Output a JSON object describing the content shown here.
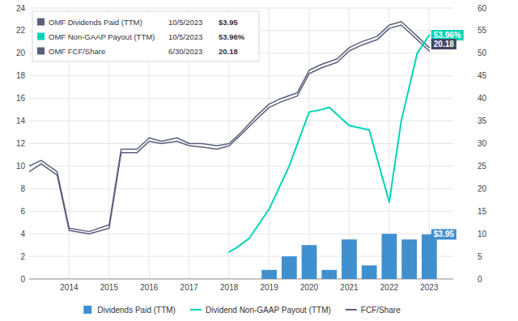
{
  "chart_data": {
    "type": "bar",
    "series": [
      {
        "name": "Dividends Paid (TTM)",
        "type": "bar",
        "color": "#4090d0",
        "x": [
          2019.0,
          2019.5,
          2020.0,
          2020.5,
          2021.0,
          2021.5,
          2022.0,
          2022.5,
          2023.0
        ],
        "values": [
          0.8,
          2.0,
          3.0,
          0.8,
          3.5,
          1.2,
          4.0,
          3.5,
          3.95
        ]
      },
      {
        "name": "Dividend Non-GAAP Payout (TTM)",
        "type": "line",
        "axis": "y2",
        "color": "#00d4b8",
        "x": [
          2018.0,
          2018.2,
          2018.5,
          2019.0,
          2019.5,
          2020.0,
          2020.3,
          2020.5,
          2021.0,
          2021.5,
          2022.0,
          2022.3,
          2022.7,
          2023.0
        ],
        "values": [
          6.0,
          7.0,
          9.0,
          15.5,
          25.0,
          37.0,
          37.5,
          38.0,
          34.0,
          33.0,
          17.0,
          35.0,
          50.0,
          54.0
        ]
      },
      {
        "name": "FCF/Share",
        "type": "line",
        "color": "#5a5f7d",
        "x": [
          2013.0,
          2013.3,
          2013.7,
          2014.0,
          2014.5,
          2015.0,
          2015.3,
          2015.7,
          2016.0,
          2016.3,
          2016.7,
          2017.0,
          2017.3,
          2017.7,
          2018.0,
          2018.3,
          2018.7,
          2019.0,
          2019.3,
          2019.7,
          2020.0,
          2020.3,
          2020.7,
          2021.0,
          2021.3,
          2021.7,
          2022.0,
          2022.3,
          2022.7,
          2023.0
        ],
        "values": [
          10.0,
          10.5,
          9.5,
          4.5,
          4.2,
          4.8,
          11.5,
          11.5,
          12.5,
          12.2,
          12.5,
          12.0,
          12.0,
          11.8,
          12.0,
          13.0,
          14.5,
          15.5,
          16.0,
          16.5,
          18.5,
          19.0,
          19.5,
          20.5,
          21.0,
          21.5,
          22.5,
          22.8,
          21.5,
          20.5
        ]
      },
      {
        "type": "line",
        "color": "#5a5f7d",
        "x": [
          2013.0,
          2013.3,
          2013.7,
          2014.0,
          2014.5,
          2015.0,
          2015.3,
          2015.7,
          2016.0,
          2016.3,
          2016.7,
          2017.0,
          2017.3,
          2017.7,
          2018.0,
          2018.3,
          2018.7,
          2019.0,
          2019.3,
          2019.7,
          2020.0,
          2020.3,
          2020.7,
          2021.0,
          2021.3,
          2021.7,
          2022.0,
          2022.3,
          2022.7,
          2023.0
        ],
        "values": [
          9.5,
          10.2,
          9.2,
          4.3,
          4.0,
          4.5,
          11.2,
          11.2,
          12.2,
          12.0,
          12.2,
          11.8,
          11.7,
          11.5,
          11.8,
          12.8,
          14.2,
          15.2,
          15.7,
          16.2,
          18.2,
          18.7,
          19.2,
          20.2,
          20.7,
          21.2,
          22.2,
          22.5,
          21.2,
          20.2
        ]
      }
    ],
    "xlim": [
      2013.0,
      2023.6
    ],
    "xticks": [
      2014,
      2015,
      2016,
      2017,
      2018,
      2019,
      2020,
      2021,
      2022,
      2023
    ],
    "ylim": [
      0,
      24
    ],
    "yticks": [
      0,
      2,
      4,
      6,
      8,
      10,
      12,
      14,
      16,
      18,
      20,
      22,
      24
    ],
    "y2lim": [
      0,
      60
    ],
    "y2ticks": [
      0,
      5,
      10,
      15,
      20,
      25,
      30,
      35,
      40,
      45,
      50,
      55,
      60
    ],
    "grid": true,
    "legend": "bottom",
    "annotations": [
      {
        "text": "53.96%",
        "x": 2023.05,
        "y": 54.0,
        "axis": "y2",
        "color": "#00d4b8"
      },
      {
        "text": "20.18",
        "x": 2023.05,
        "y": 20.8,
        "color": "#454560"
      },
      {
        "text": "$3.95",
        "x": 2023.05,
        "y": 3.95,
        "color": "#4090d0"
      }
    ],
    "info_rows": [
      {
        "label": "OMF Dividends Paid (TTM)",
        "date": "10/5/2023",
        "value": "$3.95",
        "color": "#5a5f7d"
      },
      {
        "label": "OMF Non-GAAP Payout (TTM)",
        "date": "10/5/2023",
        "value": "53.96%",
        "color": "#00d4b8"
      },
      {
        "label": "OMF FCF/Share",
        "date": "6/30/2023",
        "value": "20.18",
        "color": "#5a5f7d"
      }
    ]
  }
}
